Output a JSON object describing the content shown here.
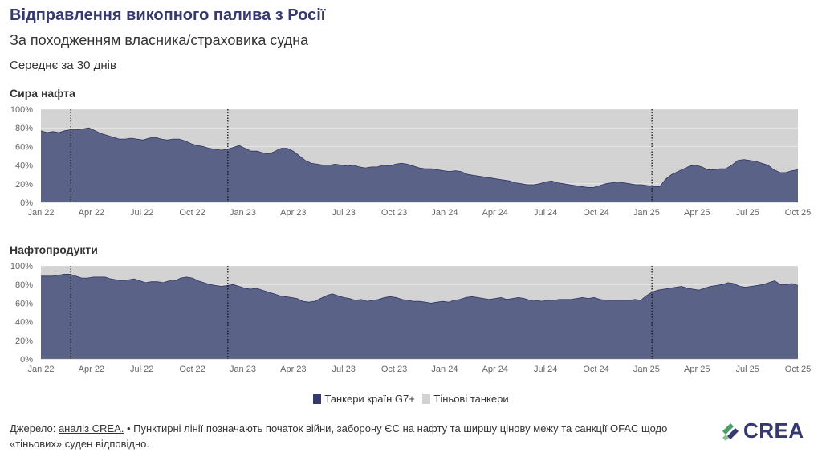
{
  "header": {
    "title": "Відправлення викопного палива з Росії",
    "subtitle": "За походженням власника/страховика судна",
    "note": "Середнє за 30 днів"
  },
  "colors": {
    "g7": "#5b6287",
    "shadow": "#d3d3d3",
    "title": "#35396e",
    "logo_green": "#4f9a6a"
  },
  "chart_data": [
    {
      "type": "area",
      "title": "Сира нафта",
      "ylim": [
        0,
        100
      ],
      "y_ticks": [
        "0%",
        "20%",
        "40%",
        "60%",
        "80%",
        "100%"
      ],
      "x_ticks": [
        "Jan 22",
        "Apr 22",
        "Jul 22",
        "Oct 22",
        "Jan 23",
        "Apr 23",
        "Jul 23",
        "Oct 23",
        "Jan 24",
        "Apr 24",
        "Jul 24",
        "Oct 24",
        "Jan 25",
        "Apr 25",
        "Jul 25",
        "Oct 25"
      ],
      "event_lines": [
        "2022-02-24",
        "2022-12-05",
        "2025-01-10"
      ],
      "series": [
        {
          "name": "Танкери країн G7+",
          "values": [
            77,
            75,
            76,
            75,
            77,
            78,
            78,
            79,
            80,
            77,
            74,
            72,
            70,
            68,
            68,
            69,
            68,
            67,
            69,
            70,
            68,
            67,
            68,
            68,
            66,
            63,
            61,
            60,
            58,
            57,
            56,
            57,
            59,
            61,
            58,
            55,
            55,
            53,
            52,
            55,
            58,
            58,
            55,
            50,
            45,
            42,
            41,
            40,
            40,
            41,
            40,
            39,
            40,
            38,
            37,
            38,
            38,
            40,
            39,
            41,
            42,
            41,
            39,
            37,
            36,
            36,
            35,
            34,
            33,
            34,
            33,
            30,
            29,
            28,
            27,
            26,
            25,
            24,
            23,
            21,
            20,
            19,
            19,
            20,
            22,
            23,
            21,
            20,
            19,
            18,
            17,
            16,
            16,
            18,
            20,
            21,
            22,
            21,
            20,
            19,
            19,
            18,
            17,
            17,
            25,
            30,
            33,
            36,
            39,
            40,
            38,
            35,
            35,
            36,
            36,
            40,
            45,
            46,
            45,
            44,
            42,
            40,
            35,
            32,
            32,
            34,
            35
          ]
        },
        {
          "name": "Тіньові танкери",
          "values": [
            23,
            25,
            24,
            25,
            23,
            22,
            22,
            21,
            20,
            23,
            26,
            28,
            30,
            32,
            32,
            31,
            32,
            33,
            31,
            30,
            32,
            33,
            32,
            32,
            34,
            37,
            39,
            40,
            42,
            43,
            44,
            43,
            41,
            39,
            42,
            45,
            45,
            47,
            48,
            45,
            42,
            42,
            45,
            50,
            55,
            58,
            59,
            60,
            60,
            59,
            60,
            61,
            60,
            62,
            63,
            62,
            62,
            60,
            61,
            59,
            58,
            59,
            61,
            63,
            64,
            64,
            65,
            66,
            67,
            66,
            67,
            70,
            71,
            72,
            73,
            74,
            75,
            76,
            77,
            79,
            80,
            81,
            81,
            80,
            78,
            77,
            79,
            80,
            81,
            82,
            83,
            84,
            84,
            82,
            80,
            79,
            78,
            79,
            80,
            81,
            81,
            82,
            83,
            83,
            75,
            70,
            67,
            64,
            61,
            60,
            62,
            65,
            65,
            64,
            64,
            60,
            55,
            54,
            55,
            56,
            58,
            60,
            65,
            68,
            68,
            66,
            65
          ]
        }
      ]
    },
    {
      "type": "area",
      "title": "Нафтопродукти",
      "ylim": [
        0,
        100
      ],
      "y_ticks": [
        "0%",
        "20%",
        "40%",
        "60%",
        "80%",
        "100%"
      ],
      "x_ticks": [
        "Jan 22",
        "Apr 22",
        "Jul 22",
        "Oct 22",
        "Jan 23",
        "Apr 23",
        "Jul 23",
        "Oct 23",
        "Jan 24",
        "Apr 24",
        "Jul 24",
        "Oct 24",
        "Jan 25",
        "Apr 25",
        "Jul 25",
        "Oct 25"
      ],
      "event_lines": [
        "2022-02-24",
        "2022-12-05",
        "2025-01-10"
      ],
      "series": [
        {
          "name": "Танкери країн G7+",
          "values": [
            89,
            89,
            89,
            90,
            91,
            91,
            89,
            87,
            87,
            88,
            88,
            88,
            86,
            85,
            84,
            85,
            86,
            84,
            82,
            83,
            83,
            82,
            84,
            84,
            87,
            88,
            87,
            84,
            82,
            80,
            79,
            78,
            79,
            80,
            78,
            76,
            75,
            76,
            74,
            72,
            70,
            68,
            67,
            66,
            65,
            62,
            61,
            62,
            65,
            68,
            70,
            68,
            66,
            65,
            63,
            64,
            62,
            63,
            64,
            66,
            67,
            66,
            64,
            63,
            62,
            62,
            61,
            60,
            61,
            62,
            61,
            63,
            64,
            66,
            67,
            66,
            65,
            64,
            65,
            66,
            64,
            65,
            66,
            65,
            63,
            63,
            62,
            63,
            63,
            64,
            64,
            64,
            65,
            66,
            65,
            66,
            64,
            63,
            63,
            63,
            63,
            63,
            64,
            63,
            68,
            72,
            74,
            75,
            76,
            77,
            78,
            76,
            75,
            74,
            76,
            78,
            79,
            80,
            82,
            81,
            78,
            77,
            78,
            79,
            80,
            82,
            84,
            80,
            80,
            81,
            79
          ]
        },
        {
          "name": "Тіньові танкери",
          "values": [
            11,
            11,
            11,
            10,
            9,
            9,
            11,
            13,
            13,
            12,
            12,
            12,
            14,
            15,
            16,
            15,
            14,
            16,
            18,
            17,
            17,
            18,
            16,
            16,
            13,
            12,
            13,
            16,
            18,
            20,
            21,
            22,
            21,
            20,
            22,
            24,
            25,
            24,
            26,
            28,
            30,
            32,
            33,
            34,
            35,
            38,
            39,
            38,
            35,
            32,
            30,
            32,
            34,
            35,
            37,
            36,
            38,
            37,
            36,
            34,
            33,
            34,
            36,
            37,
            38,
            38,
            39,
            40,
            39,
            38,
            39,
            37,
            36,
            34,
            33,
            34,
            35,
            36,
            35,
            34,
            36,
            35,
            34,
            35,
            37,
            37,
            38,
            37,
            37,
            36,
            36,
            36,
            35,
            34,
            35,
            34,
            36,
            37,
            37,
            37,
            37,
            37,
            36,
            37,
            32,
            28,
            26,
            25,
            24,
            23,
            22,
            24,
            25,
            26,
            24,
            22,
            21,
            20,
            18,
            19,
            22,
            23,
            22,
            21,
            20,
            18,
            16,
            20,
            20,
            19,
            21
          ]
        }
      ]
    }
  ],
  "legend": {
    "g7_label": "Танкери країн G7+",
    "shadow_label": "Тіньові танкери"
  },
  "footer": {
    "prefix": "Джерело: ",
    "link": "аналіз CREA.",
    "text": " • Пунктирні лінії позначають початок війни, заборону ЄС на нафту та ширшу цінову межу та санкції OFAC щодо «тіньових» суден відповідно."
  },
  "logo": {
    "text": "CREA",
    "icon": "crea-leaf-logo"
  }
}
